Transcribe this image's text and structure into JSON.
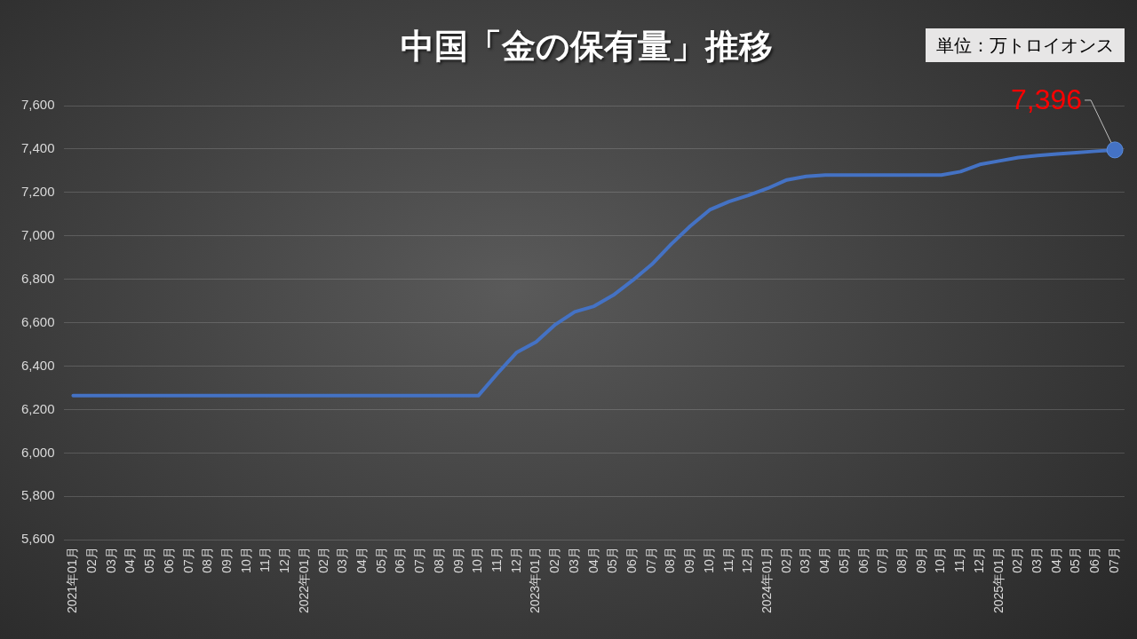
{
  "chart_data": {
    "type": "line",
    "title": "中国「金の保有量」推移",
    "annotations": [
      "単位：万トロイオンス"
    ],
    "categories": [
      "2021年01月",
      "02月",
      "03月",
      "04月",
      "05月",
      "06月",
      "07月",
      "08月",
      "09月",
      "10月",
      "11月",
      "12月",
      "2022年01月",
      "02月",
      "03月",
      "04月",
      "05月",
      "06月",
      "07月",
      "08月",
      "09月",
      "10月",
      "11月",
      "12月",
      "2023年01月",
      "02月",
      "03月",
      "04月",
      "05月",
      "06月",
      "07月",
      "08月",
      "09月",
      "10月",
      "11月",
      "12月",
      "2024年01月",
      "02月",
      "03月",
      "04月",
      "05月",
      "06月",
      "07月",
      "08月",
      "09月",
      "10月",
      "11月",
      "12月",
      "2025年01月",
      "02月",
      "03月",
      "04月",
      "05月",
      "06月",
      "07月"
    ],
    "series": [
      {
        "color": "#4472c4",
        "values": [
          6264,
          6264,
          6264,
          6264,
          6264,
          6264,
          6264,
          6264,
          6264,
          6264,
          6264,
          6264,
          6264,
          6264,
          6264,
          6264,
          6264,
          6264,
          6264,
          6264,
          6264,
          6264,
          6367,
          6464,
          6512,
          6592,
          6650,
          6676,
          6727,
          6795,
          6869,
          6962,
          7046,
          7120,
          7158,
          7187,
          7219,
          7258,
          7274,
          7280,
          7280,
          7280,
          7280,
          7280,
          7280,
          7280,
          7296,
          7329,
          7345,
          7361,
          7370,
          7377,
          7383,
          7390,
          7396
        ],
        "value_labels": [
          null,
          null,
          null,
          null,
          null,
          null,
          null,
          null,
          null,
          null,
          null,
          null,
          null,
          null,
          null,
          null,
          null,
          null,
          null,
          null,
          null,
          null,
          null,
          null,
          null,
          null,
          null,
          null,
          null,
          null,
          null,
          null,
          null,
          null,
          null,
          null,
          null,
          null,
          null,
          null,
          null,
          null,
          null,
          null,
          null,
          null,
          null,
          null,
          null,
          null,
          null,
          null,
          null,
          null,
          "7,396"
        ]
      }
    ],
    "ylim": [
      5600,
      7600
    ],
    "yticks": [
      {
        "value": 5600,
        "label": "5,600"
      },
      {
        "value": 5800,
        "label": "5,800"
      },
      {
        "value": 6000,
        "label": "6,000"
      },
      {
        "value": 6200,
        "label": "6,200"
      },
      {
        "value": 6400,
        "label": "6,400"
      },
      {
        "value": 6600,
        "label": "6,600"
      },
      {
        "value": 6800,
        "label": "6,800"
      },
      {
        "value": 7000,
        "label": "7,000"
      },
      {
        "value": 7200,
        "label": "7,200"
      },
      {
        "value": 7400,
        "label": "7,400"
      },
      {
        "value": 7600,
        "label": "7,600"
      }
    ],
    "grid": "y"
  }
}
